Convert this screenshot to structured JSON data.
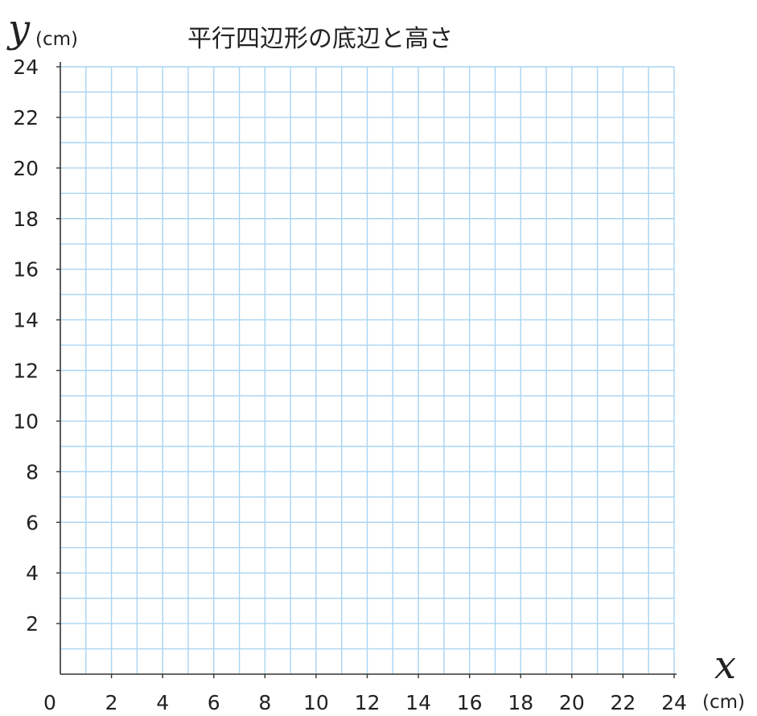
{
  "chart_data": {
    "type": "scatter",
    "title": "平行四辺形の底辺と高さ",
    "xlabel": "x",
    "ylabel": "y",
    "x_unit": "(cm)",
    "y_unit": "(cm)",
    "origin_label": "0",
    "xlim": [
      0,
      24
    ],
    "ylim": [
      0,
      24
    ],
    "grid": true,
    "grid_step": 1,
    "x_ticks": [
      2,
      4,
      6,
      8,
      10,
      12,
      14,
      16,
      18,
      20,
      22,
      24
    ],
    "y_ticks": [
      2,
      4,
      6,
      8,
      10,
      12,
      14,
      16,
      18,
      20,
      22,
      24
    ],
    "series": [],
    "colors": {
      "grid": "#a9d4f2",
      "axis": "#333333"
    }
  }
}
